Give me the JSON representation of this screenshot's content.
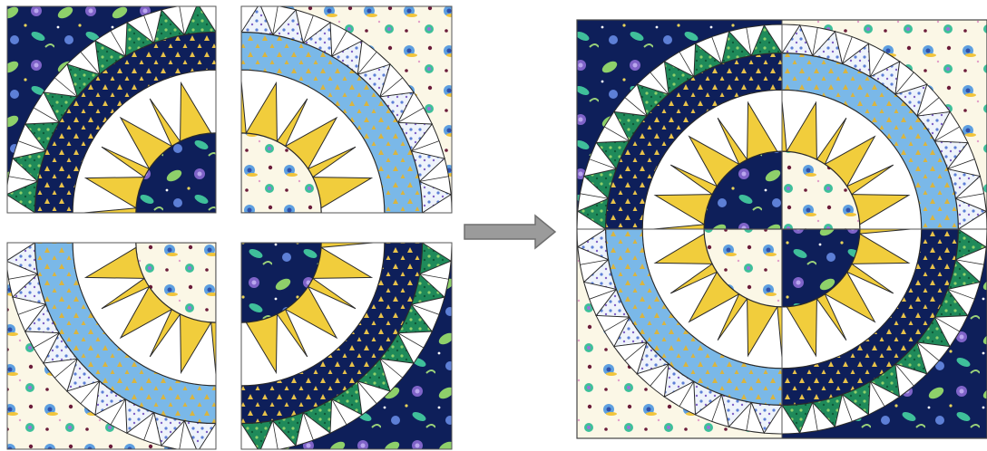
{
  "diagram": {
    "kind": "quilt-block-assembly",
    "blocks": [
      {
        "name": "block-top-left",
        "fill": "floral",
        "outer_ring": "dark",
        "spike_color": "green"
      },
      {
        "name": "block-top-right",
        "fill": "snail",
        "outer_ring": "light",
        "spike_color": "blue-print"
      },
      {
        "name": "block-bottom-left",
        "fill": "snail",
        "outer_ring": "light",
        "spike_color": "blue-print"
      },
      {
        "name": "block-bottom-right",
        "fill": "floral",
        "outer_ring": "dark",
        "spike_color": "green"
      }
    ],
    "arrow": {
      "direction": "right",
      "icon": "right-arrow-icon"
    },
    "result": {
      "name": "assembled-quilt-block",
      "star_points": 12
    }
  },
  "colors": {
    "navy": "#0e1f5a",
    "light_blue": "#7ab8e8",
    "yellow": "#f1cd3c",
    "green": "#1f8a5a",
    "cream": "#fbf7e6",
    "white": "#ffffff",
    "outline": "#2a2a2a",
    "arrow": "#9b9b9b"
  }
}
